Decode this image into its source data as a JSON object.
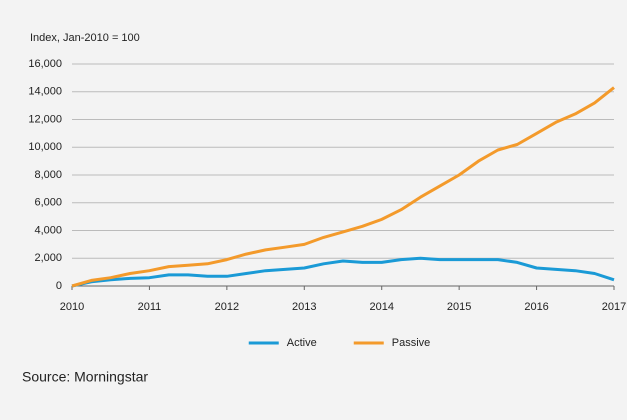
{
  "chart_data": {
    "type": "line",
    "ylabel": "Index, Jan-2010 = 100",
    "source": "Source: Morningstar",
    "x": [
      2010,
      2010.25,
      2010.5,
      2010.75,
      2011,
      2011.25,
      2011.5,
      2011.75,
      2012,
      2012.25,
      2012.5,
      2012.75,
      2013,
      2013.25,
      2013.5,
      2013.75,
      2014,
      2014.25,
      2014.5,
      2014.75,
      2015,
      2015.25,
      2015.5,
      2015.75,
      2016,
      2016.25,
      2016.5,
      2016.75,
      2017
    ],
    "series": [
      {
        "name": "Active",
        "color": "#1a9ad6",
        "values": [
          0,
          300,
          450,
          550,
          600,
          800,
          800,
          700,
          700,
          900,
          1100,
          1200,
          1300,
          1600,
          1800,
          1700,
          1700,
          1900,
          2000,
          1900,
          1900,
          1900,
          1900,
          1700,
          1300,
          1200,
          1100,
          900,
          450
        ]
      },
      {
        "name": "Passive",
        "color": "#f39a2b",
        "values": [
          0,
          400,
          600,
          900,
          1100,
          1400,
          1500,
          1600,
          1900,
          2300,
          2600,
          2800,
          3000,
          3500,
          3900,
          4300,
          4800,
          5500,
          6400,
          7200,
          8000,
          9000,
          9800,
          10200,
          11000,
          11800,
          12400,
          13200,
          14300
        ]
      }
    ],
    "xlim": [
      2010,
      2017
    ],
    "xticks": [
      2010,
      2011,
      2012,
      2013,
      2014,
      2015,
      2016,
      2017
    ],
    "ylim": [
      0,
      16000
    ],
    "yticks": [
      0,
      {
        "value": 2000,
        "label": "2,000"
      },
      {
        "value": 4000,
        "label": "4,000"
      },
      {
        "value": 6000,
        "label": "6,000"
      },
      {
        "value": 8000,
        "label": "8,000"
      },
      {
        "value": 10000,
        "label": "10,000"
      },
      {
        "value": 12000,
        "label": "12,000"
      },
      {
        "value": 14000,
        "label": "14,000"
      },
      {
        "value": 16000,
        "label": "16,000"
      }
    ],
    "grid": true,
    "legend": "bottom"
  }
}
